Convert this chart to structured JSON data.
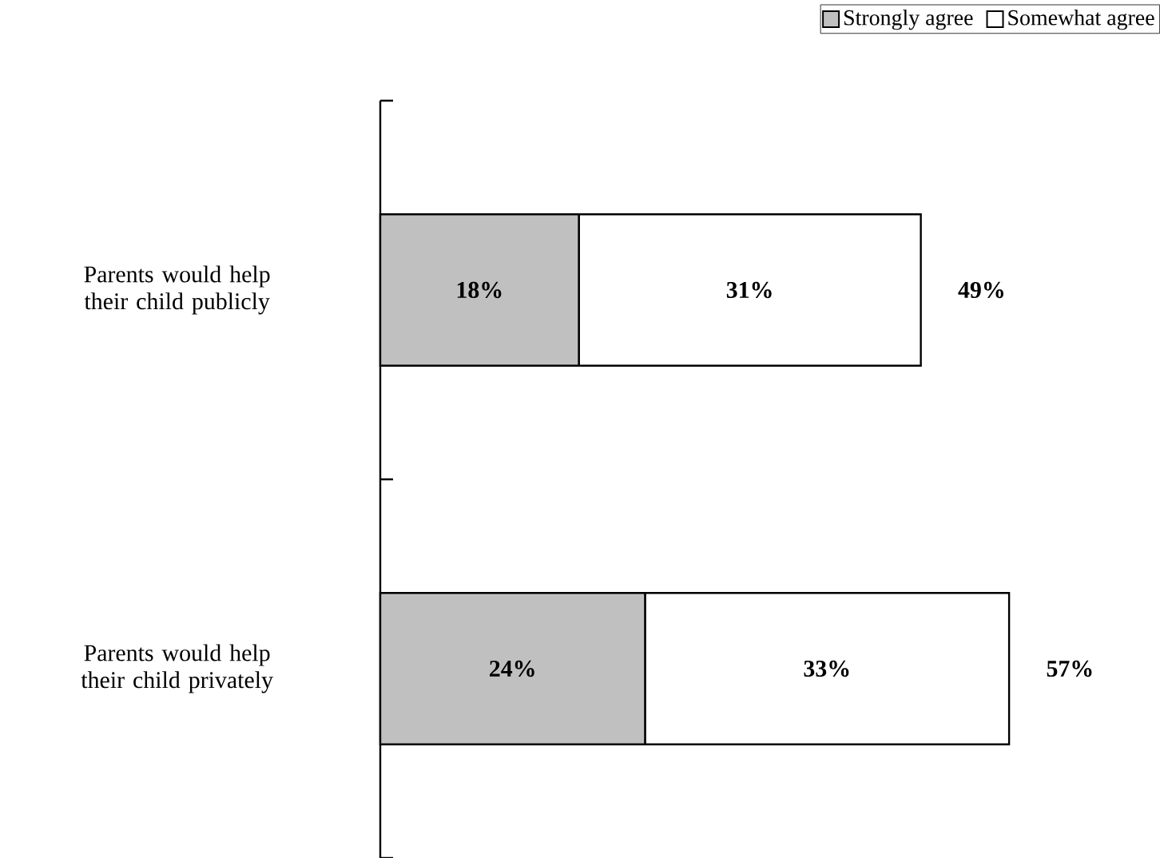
{
  "chart_data": {
    "type": "bar",
    "orientation": "horizontal",
    "stacked": true,
    "categories": [
      "Parents would help their child publicly",
      "Parents would help their child privately"
    ],
    "series": [
      {
        "name": "Strongly agree",
        "color": "#c0c0c0",
        "values": [
          18,
          24
        ],
        "value_labels": [
          "18%",
          "24%"
        ]
      },
      {
        "name": "Somewhat agree",
        "color": "#ffffff",
        "values": [
          31,
          33
        ],
        "value_labels": [
          "31%",
          "33%"
        ]
      }
    ],
    "totals": [
      "49%",
      "57%"
    ],
    "legend": "top right"
  }
}
